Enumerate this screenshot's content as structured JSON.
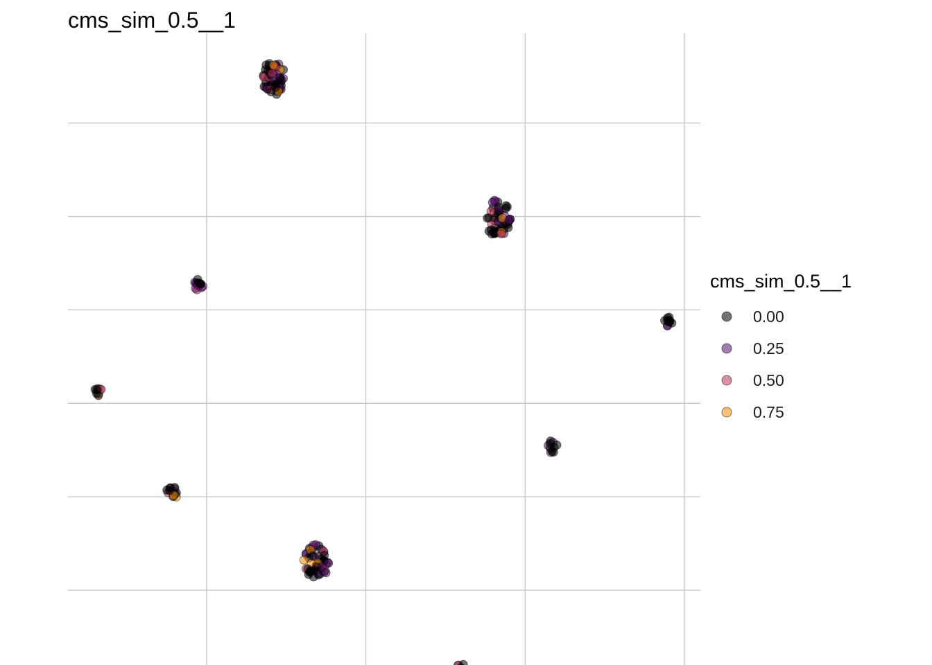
{
  "chart_data": {
    "type": "scatter",
    "title": "cms_sim_0.5__1",
    "xlabel": "",
    "ylabel": "",
    "grid": true,
    "axis_tick_labels": false,
    "legend": {
      "title": "cms_sim_0.5__1",
      "placement": "right",
      "entries": [
        {
          "label": "0.00",
          "color": "#000004"
        },
        {
          "label": "0.25",
          "color": "#57106e"
        },
        {
          "label": "0.50",
          "color": "#bc3754"
        },
        {
          "label": "0.75",
          "color": "#f98e09"
        }
      ]
    },
    "colors": {
      "c000": "#000004",
      "c025": "#57106e",
      "c050": "#bc3754",
      "c075": "#f98e09",
      "grid": "#c8c8c8"
    },
    "xlim": [
      -2.87,
      1.1
    ],
    "ylim": [
      -1.4,
      1.98
    ],
    "x_gridlines": [
      -2,
      -1,
      0,
      1
    ],
    "y_gridlines": [
      -1,
      0,
      1
    ],
    "clusters": [
      {
        "name": "cluster-top",
        "x": -1.58,
        "y": 1.74,
        "spread": 0.075,
        "count": 60
      },
      {
        "name": "cluster-upper-right",
        "x": -0.17,
        "y": 0.99,
        "spread": 0.085,
        "count": 50
      },
      {
        "name": "cluster-left-mid",
        "x": -2.05,
        "y": 0.63,
        "spread": 0.03,
        "count": 14
      },
      {
        "name": "cluster-far-right",
        "x": 0.9,
        "y": 0.44,
        "spread": 0.025,
        "count": 10
      },
      {
        "name": "cluster-far-left",
        "x": -2.68,
        "y": 0.07,
        "spread": 0.025,
        "count": 8
      },
      {
        "name": "cluster-lower-left",
        "x": -2.22,
        "y": -0.48,
        "spread": 0.035,
        "count": 12
      },
      {
        "name": "cluster-right-mid",
        "x": 0.17,
        "y": -0.23,
        "spread": 0.03,
        "count": 10
      },
      {
        "name": "cluster-bottom-center",
        "x": -1.31,
        "y": -0.85,
        "spread": 0.08,
        "count": 50
      },
      {
        "name": "cluster-bottom",
        "x": -0.41,
        "y": -1.42,
        "spread": 0.03,
        "count": 10
      }
    ]
  }
}
